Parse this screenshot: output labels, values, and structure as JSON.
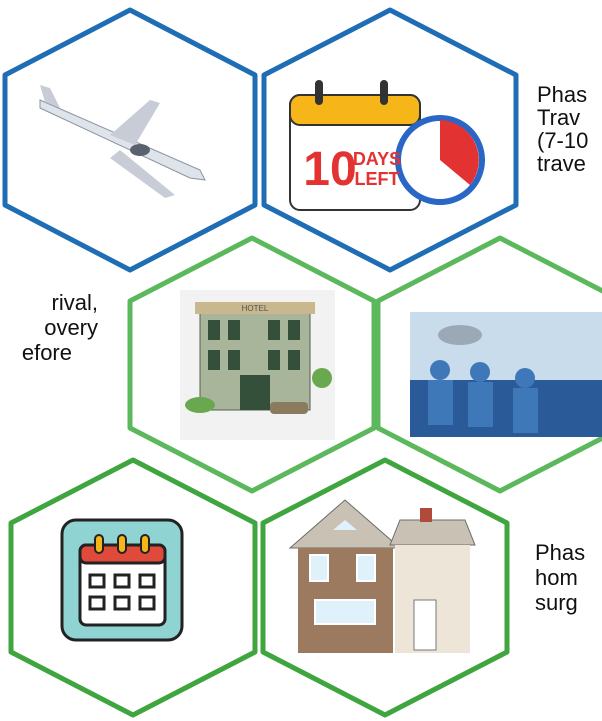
{
  "text_blocks": [
    {
      "lines": [
        "Phas",
        "Trav",
        "(7-10",
        "trave"
      ]
    },
    {
      "lines": [
        "rival,",
        "overy",
        "efore"
      ]
    },
    {
      "lines": [
        "Phas",
        "hom",
        "surg"
      ]
    }
  ],
  "icons": {
    "countdown": {
      "number": "10",
      "word1": "DAYS",
      "word2": "LEFT"
    },
    "hotel": {
      "sign": "HOTEL"
    }
  }
}
